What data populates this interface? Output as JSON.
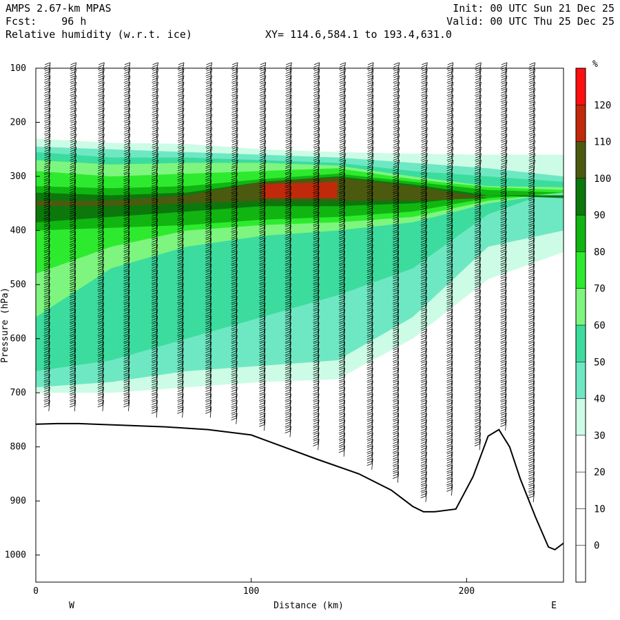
{
  "header": {
    "model": "AMPS 2.67-km MPAS",
    "fcst": "Fcst:    96 h",
    "field": "Relative humidity (w.r.t. ice)",
    "init": "Init: 00 UTC Sun 21 Dec 25",
    "valid": "Valid: 00 UTC Thu 25 Dec 25",
    "xy": "XY= 114.6,584.1 to 193.4,631.0"
  },
  "chart_data": {
    "type": "heatmap",
    "title": "Relative humidity (w.r.t. ice)",
    "xlabel": "Distance (km)",
    "ylabel": "Pressure (hPa)",
    "x_ticks": [
      0,
      100,
      200
    ],
    "y_ticks": [
      100,
      200,
      300,
      400,
      500,
      600,
      700,
      800,
      900,
      1000
    ],
    "xlim": [
      0,
      245
    ],
    "ylim": [
      1050,
      100
    ],
    "end_labels": {
      "left": "W",
      "right": "E"
    },
    "colorbar": {
      "unit": "%",
      "levels": [
        0,
        10,
        20,
        30,
        40,
        50,
        60,
        70,
        80,
        90,
        100,
        110,
        120
      ],
      "colors": [
        "#ffffff",
        "#ffffff",
        "#ffffff",
        "#ffffff",
        "#ccfce6",
        "#6ee8c2",
        "#3cdc9e",
        "#7ef57e",
        "#2eea2e",
        "#11b511",
        "#0c780c",
        "#4c5a10",
        "#c02a0a",
        "#ff1010"
      ]
    },
    "terrain_profile": {
      "distance_km": [
        0,
        10,
        20,
        40,
        60,
        80,
        100,
        115,
        130,
        150,
        165,
        175,
        180,
        185,
        195,
        203,
        210,
        215,
        220,
        225,
        232,
        238,
        241,
        245
      ],
      "pressure_hPa": [
        758,
        757,
        757,
        760,
        763,
        768,
        778,
        800,
        822,
        850,
        880,
        910,
        920,
        920,
        915,
        855,
        780,
        768,
        800,
        860,
        930,
        985,
        990,
        978
      ]
    },
    "rh_bands": [
      {
        "band": "30-40",
        "top_hPa": [
          230,
          238,
          240,
          250,
          255,
          258,
          260,
          260
        ],
        "bottom_hPa": [
          700,
          700,
          690,
          680,
          675,
          600,
          490,
          440
        ]
      },
      {
        "band": "40-50",
        "top_hPa": [
          245,
          250,
          255,
          260,
          265,
          275,
          285,
          300
        ],
        "bottom_hPa": [
          690,
          680,
          660,
          650,
          640,
          560,
          430,
          400
        ]
      },
      {
        "band": "50-60",
        "top_hPa": [
          255,
          265,
          265,
          270,
          275,
          290,
          300,
          310
        ],
        "bottom_hPa": [
          660,
          640,
          600,
          560,
          520,
          470,
          370,
          320
        ]
      },
      {
        "band": "60-70",
        "top_hPa": [
          270,
          278,
          275,
          275,
          280,
          300,
          318,
          320
        ],
        "bottom_hPa": [
          560,
          470,
          430,
          410,
          400,
          385,
          350,
          330
        ]
      },
      {
        "band": "70-80",
        "top_hPa": [
          290,
          300,
          295,
          290,
          285,
          305,
          320,
          325
        ],
        "bottom_hPa": [
          480,
          430,
          400,
          390,
          385,
          375,
          345,
          330
        ]
      },
      {
        "band": "80-90",
        "top_hPa": [
          318,
          322,
          318,
          305,
          295,
          310,
          325,
          330
        ],
        "bottom_hPa": [
          400,
          395,
          390,
          380,
          375,
          365,
          340,
          330
        ]
      },
      {
        "band": "90-100",
        "top_hPa": [
          330,
          335,
          330,
          310,
          300,
          315,
          335,
          340
        ],
        "bottom_hPa": [
          385,
          375,
          365,
          355,
          355,
          350,
          335,
          335
        ]
      },
      {
        "band": "100-110",
        "top_hPa": [
          345,
          345,
          335,
          310,
          302,
          318,
          340,
          340
        ],
        "bottom_hPa": [
          355,
          355,
          350,
          345,
          345,
          345,
          340,
          340
        ]
      },
      {
        "band": "110-120",
        "top_hPa": [
          0,
          0,
          0,
          315,
          310,
          0,
          0,
          0
        ],
        "bottom_hPa": [
          0,
          0,
          0,
          340,
          340,
          0,
          0,
          0
        ]
      }
    ],
    "rh_band_distance_km": [
      0,
      35,
      70,
      105,
      140,
      175,
      210,
      245
    ],
    "wind_barb_columns_km": [
      6,
      18,
      31,
      43,
      56,
      68,
      81,
      93,
      106,
      118,
      131,
      143,
      156,
      168,
      181,
      193,
      206,
      218,
      231
    ]
  }
}
